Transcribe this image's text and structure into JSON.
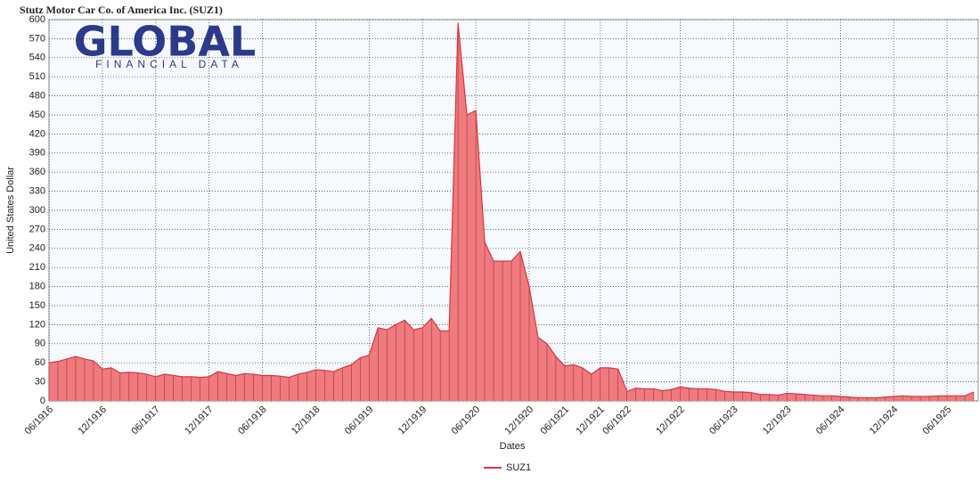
{
  "chart_data": {
    "type": "area",
    "title": "Stutz Motor Car Co. of America Inc. (SUZ1)",
    "watermark": {
      "title": "GLOBAL",
      "subtitle": "FINANCIAL DATA"
    },
    "y_label": "United States Dollar",
    "x_label": "Dates",
    "categories": [
      "06/1916",
      null,
      null,
      null,
      null,
      null,
      "12/1916",
      null,
      null,
      null,
      null,
      null,
      "06/1917",
      null,
      null,
      null,
      null,
      null,
      "12/1917",
      null,
      null,
      null,
      null,
      null,
      "06/1918",
      null,
      null,
      null,
      null,
      null,
      "12/1918",
      null,
      null,
      null,
      null,
      null,
      "06/1919",
      null,
      null,
      null,
      null,
      null,
      "12/1919",
      null,
      null,
      null,
      null,
      null,
      "06/1920",
      null,
      null,
      null,
      null,
      null,
      "12/1920",
      null,
      null,
      null,
      "06/1921",
      null,
      null,
      null,
      "12/1921",
      null,
      null,
      "06/1922",
      null,
      null,
      null,
      null,
      null,
      "12/1922",
      null,
      null,
      null,
      null,
      null,
      "06/1923",
      null,
      null,
      null,
      null,
      null,
      "12/1923",
      null,
      null,
      null,
      null,
      null,
      "06/1924",
      null,
      null,
      null,
      null,
      null,
      "12/1924",
      null,
      null,
      null,
      null,
      null,
      "06/1925",
      null,
      null,
      null
    ],
    "series": [
      {
        "name": "SUZ1",
        "color": "#d9363e",
        "fill": "#f07a7e",
        "values": [
          60,
          62,
          66,
          70,
          66,
          63,
          50,
          52,
          44,
          45,
          44,
          42,
          38,
          42,
          40,
          38,
          38,
          37,
          38,
          46,
          43,
          40,
          43,
          42,
          40,
          40,
          39,
          37,
          42,
          45,
          49,
          48,
          46,
          52,
          57,
          68,
          72,
          115,
          112,
          120,
          127,
          112,
          115,
          130,
          110,
          110,
          595,
          450,
          457,
          250,
          220,
          220,
          220,
          235,
          180,
          100,
          90,
          70,
          55,
          57,
          52,
          42,
          52,
          52,
          50,
          15,
          20,
          19,
          19,
          16,
          18,
          22,
          20,
          19,
          19,
          18,
          15,
          14,
          14,
          13,
          10,
          10,
          9,
          12,
          11,
          10,
          9,
          8,
          8,
          7,
          6,
          5,
          5,
          5,
          6,
          7,
          8,
          7,
          7,
          7,
          8,
          8,
          8,
          8,
          14
        ]
      }
    ],
    "ylim": [
      0,
      600
    ],
    "yticks": [
      0,
      30,
      60,
      90,
      120,
      150,
      180,
      210,
      240,
      270,
      300,
      330,
      360,
      390,
      420,
      450,
      480,
      510,
      540,
      570,
      600
    ],
    "grid": true
  }
}
